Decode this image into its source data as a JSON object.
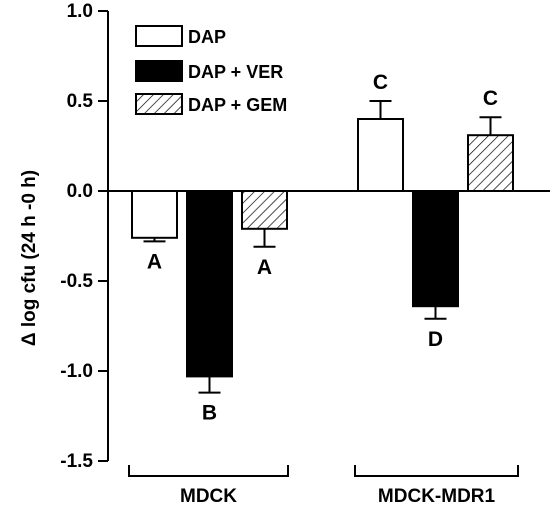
{
  "chart_data": {
    "type": "bar",
    "ylabel": "Δ log cfu (24 h -0 h)",
    "ylim": [
      -1.5,
      1.0
    ],
    "yticks": [
      1.0,
      0.5,
      0.0,
      -0.5,
      -1.0,
      -1.5
    ],
    "ytick_labels": [
      "1.0",
      "0.5",
      "0.0",
      "-0.5",
      "-1.0",
      "-1.5"
    ],
    "categories": [
      "MDCK",
      "MDCK-MDR1"
    ],
    "series": [
      {
        "name": "DAP",
        "values": [
          -0.26,
          0.4
        ],
        "errors": [
          0.02,
          0.1
        ],
        "significance": [
          "A",
          "C"
        ],
        "fill": "white"
      },
      {
        "name": "DAP + VER",
        "values": [
          -1.03,
          -0.64
        ],
        "errors": [
          0.09,
          0.07
        ],
        "significance": [
          "B",
          "D"
        ],
        "fill": "black"
      },
      {
        "name": "DAP + GEM",
        "values": [
          -0.21,
          0.31
        ],
        "errors": [
          0.1,
          0.1
        ],
        "significance": [
          "A",
          "C"
        ],
        "fill": "hatch"
      }
    ],
    "grid": false,
    "legend_position": "top-left",
    "colors": {
      "dark": "#000000",
      "light": "#ffffff"
    }
  }
}
